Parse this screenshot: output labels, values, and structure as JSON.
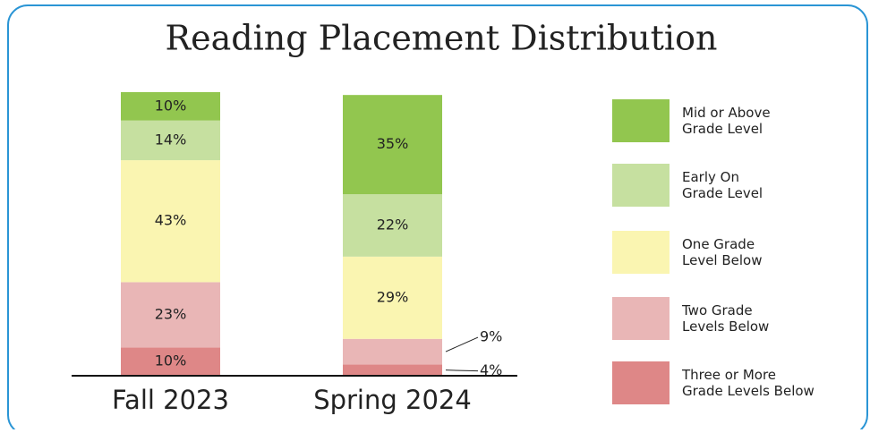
{
  "chart_data": {
    "type": "stacked_bar",
    "title": "Reading Placement Distribution",
    "categories": [
      "Fall 2023",
      "Spring 2024"
    ],
    "ylim": [
      0,
      100
    ],
    "series": [
      {
        "name": "Three or More\nGrade Levels Below",
        "color": "#de8787",
        "values": [
          10,
          4
        ],
        "value_labels": [
          "10%",
          "4%"
        ]
      },
      {
        "name": "Two Grade\nLevels Below",
        "color": "#e9b6b6",
        "values": [
          23,
          9
        ],
        "value_labels": [
          "23%",
          "9%"
        ]
      },
      {
        "name": "One Grade\nLevel Below",
        "color": "#faf5b1",
        "values": [
          43,
          29
        ],
        "value_labels": [
          "43%",
          "29%"
        ]
      },
      {
        "name": "Early On\nGrade Level",
        "color": "#c6e0a0",
        "values": [
          14,
          22
        ],
        "value_labels": [
          "14%",
          "22%"
        ]
      },
      {
        "name": "Mid or Above\nGrade Level",
        "color": "#92c64f",
        "values": [
          10,
          35
        ],
        "value_labels": [
          "10%",
          "35%"
        ]
      }
    ]
  }
}
